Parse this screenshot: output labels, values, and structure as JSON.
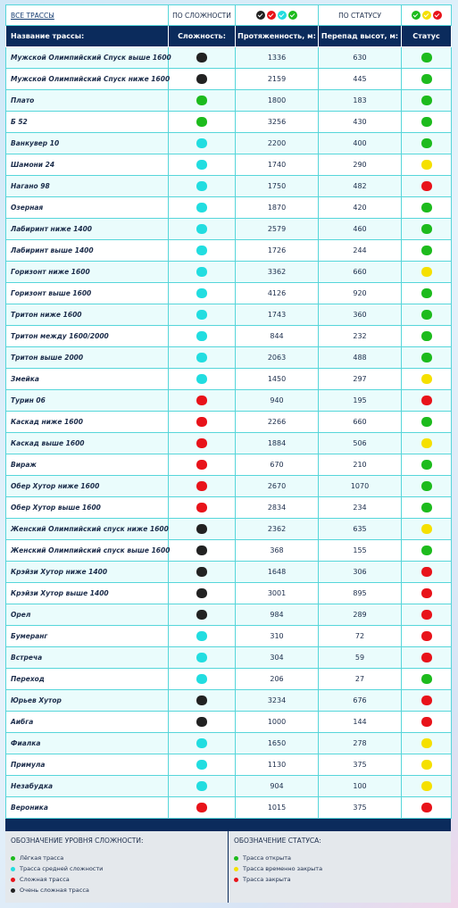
{
  "filters": {
    "all": "ВСЕ ТРАССЫ",
    "by_difficulty": "ПО СЛОЖНОСТИ",
    "by_status": "ПО СТАТУСУ"
  },
  "table": {
    "headers": [
      "Название трассы:",
      "Сложность:",
      "Протяженность, м:",
      "Перепад высот, м:",
      "Статус"
    ],
    "rows": [
      {
        "name": "Мужской Олимпийский Спуск выше 1600",
        "difficulty": "#222222",
        "length": 1336,
        "drop": 630,
        "status": "#1dbb1d"
      },
      {
        "name": "Мужской Олимпийский Спуск ниже 1600",
        "difficulty": "#222222",
        "length": 2159,
        "drop": 445,
        "status": "#1dbb1d"
      },
      {
        "name": "Плато",
        "difficulty": "#1dbb1d",
        "length": 1800,
        "drop": 183,
        "status": "#1dbb1d"
      },
      {
        "name": "Б 52",
        "difficulty": "#1dbb1d",
        "length": 3256,
        "drop": 430,
        "status": "#1dbb1d"
      },
      {
        "name": "Ванкувер 10",
        "difficulty": "#22dde0",
        "length": 2200,
        "drop": 400,
        "status": "#1dbb1d"
      },
      {
        "name": "Шамони 24",
        "difficulty": "#22dde0",
        "length": 1740,
        "drop": 290,
        "status": "#f5e000"
      },
      {
        "name": "Нагано 98",
        "difficulty": "#22dde0",
        "length": 1750,
        "drop": 482,
        "status": "#e8131a"
      },
      {
        "name": "Озерная",
        "difficulty": "#22dde0",
        "length": 1870,
        "drop": 420,
        "status": "#1dbb1d"
      },
      {
        "name": "Лабиринт ниже 1400",
        "difficulty": "#22dde0",
        "length": 2579,
        "drop": 460,
        "status": "#1dbb1d"
      },
      {
        "name": "Лабиринт выше 1400",
        "difficulty": "#22dde0",
        "length": 1726,
        "drop": 244,
        "status": "#1dbb1d"
      },
      {
        "name": "Горизонт ниже 1600",
        "difficulty": "#22dde0",
        "length": 3362,
        "drop": 660,
        "status": "#f5e000"
      },
      {
        "name": "Горизонт выше 1600",
        "difficulty": "#22dde0",
        "length": 4126,
        "drop": 920,
        "status": "#1dbb1d"
      },
      {
        "name": "Тритон ниже 1600",
        "difficulty": "#22dde0",
        "length": 1743,
        "drop": 360,
        "status": "#1dbb1d"
      },
      {
        "name": "Тритон между 1600/2000",
        "difficulty": "#22dde0",
        "length": 844,
        "drop": 232,
        "status": "#1dbb1d"
      },
      {
        "name": "Тритон выше 2000",
        "difficulty": "#22dde0",
        "length": 2063,
        "drop": 488,
        "status": "#1dbb1d"
      },
      {
        "name": "Змейка",
        "difficulty": "#22dde0",
        "length": 1450,
        "drop": 297,
        "status": "#f5e000"
      },
      {
        "name": "Турин 06",
        "difficulty": "#e8131a",
        "length": 940,
        "drop": 195,
        "status": "#e8131a"
      },
      {
        "name": "Каскад ниже 1600",
        "difficulty": "#e8131a",
        "length": 2266,
        "drop": 660,
        "status": "#1dbb1d"
      },
      {
        "name": "Каскад выше 1600",
        "difficulty": "#e8131a",
        "length": 1884,
        "drop": 506,
        "status": "#f5e000"
      },
      {
        "name": "Вираж",
        "difficulty": "#e8131a",
        "length": 670,
        "drop": 210,
        "status": "#1dbb1d"
      },
      {
        "name": "Обер Хутор ниже 1600",
        "difficulty": "#e8131a",
        "length": 2670,
        "drop": 1070,
        "status": "#1dbb1d"
      },
      {
        "name": "Обер Хутор выше 1600",
        "difficulty": "#e8131a",
        "length": 2834,
        "drop": 234,
        "status": "#1dbb1d"
      },
      {
        "name": "Женский Олимпийский спуск ниже 1600",
        "difficulty": "#222222",
        "length": 2362,
        "drop": 635,
        "status": "#f5e000"
      },
      {
        "name": "Женский Олимпийский спуск выше 1600",
        "difficulty": "#222222",
        "length": 368,
        "drop": 155,
        "status": "#1dbb1d"
      },
      {
        "name": "Крэйзи Хутор ниже 1400",
        "difficulty": "#222222",
        "length": 1648,
        "drop": 306,
        "status": "#e8131a"
      },
      {
        "name": "Крэйзи Хутор выше 1400",
        "difficulty": "#222222",
        "length": 3001,
        "drop": 895,
        "status": "#e8131a"
      },
      {
        "name": "Орел",
        "difficulty": "#222222",
        "length": 984,
        "drop": 289,
        "status": "#e8131a"
      },
      {
        "name": "Бумеранг",
        "difficulty": "#22dde0",
        "length": 310,
        "drop": 72,
        "status": "#e8131a"
      },
      {
        "name": "Встреча",
        "difficulty": "#22dde0",
        "length": 304,
        "drop": 59,
        "status": "#e8131a"
      },
      {
        "name": "Переход",
        "difficulty": "#22dde0",
        "length": 206,
        "drop": 27,
        "status": "#1dbb1d"
      },
      {
        "name": "Юрьев Хутор",
        "difficulty": "#222222",
        "length": 3234,
        "drop": 676,
        "status": "#e8131a"
      },
      {
        "name": "Аибга",
        "difficulty": "#222222",
        "length": 1000,
        "drop": 144,
        "status": "#e8131a"
      },
      {
        "name": "Фиалка",
        "difficulty": "#22dde0",
        "length": 1650,
        "drop": 278,
        "status": "#f5e000"
      },
      {
        "name": "Примула",
        "difficulty": "#22dde0",
        "length": 1130,
        "drop": 375,
        "status": "#f5e000"
      },
      {
        "name": "Незабудка",
        "difficulty": "#22dde0",
        "length": 904,
        "drop": 100,
        "status": "#f5e000"
      },
      {
        "name": "Вероника",
        "difficulty": "#e8131a",
        "length": 1015,
        "drop": 375,
        "status": "#e8131a"
      }
    ]
  },
  "legend": {
    "difficulty": {
      "title": "ОБОЗНАЧЕНИЕ УРОВНЯ СЛОЖНОСТИ:",
      "items": [
        {
          "label": "Лёгкая трасса",
          "color": "#1dbb1d"
        },
        {
          "label": "Трасса средней сложности",
          "color": "#22dde0"
        },
        {
          "label": "Сложная трасса",
          "color": "#e8131a"
        },
        {
          "label": "Очень сложная трасса",
          "color": "#222222"
        }
      ]
    },
    "status": {
      "title": "ОБОЗНАЧЕНИЕ СТАТУСА:",
      "items": [
        {
          "label": "Трасса открыта",
          "color": "#1dbb1d"
        },
        {
          "label": "Трасса временно закрыта",
          "color": "#f5e000"
        },
        {
          "label": "Трасса закрыта",
          "color": "#e8131a"
        }
      ]
    }
  }
}
